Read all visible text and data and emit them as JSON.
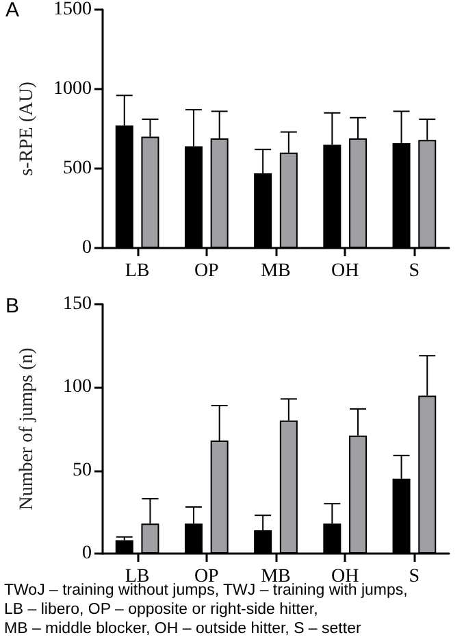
{
  "chart_data": [
    {
      "type": "bar",
      "annotations": [
        "A"
      ],
      "ylabel": "s-RPE (AU)",
      "categories": [
        "LB",
        "OP",
        "MB",
        "OH",
        "S"
      ],
      "ylim": [
        0,
        1500
      ],
      "yticks": [
        0,
        500,
        1000,
        1500
      ],
      "grid": false,
      "series": [
        {
          "color": "#000000",
          "values": [
            770,
            640,
            470,
            650,
            660
          ],
          "errors": [
            [
              770,
              960
            ],
            [
              640,
              870
            ],
            [
              470,
              620
            ],
            [
              650,
              850
            ],
            [
              660,
              860
            ]
          ]
        },
        {
          "color": "#a0a0a4",
          "values": [
            700,
            690,
            600,
            690,
            680
          ],
          "errors": [
            [
              700,
              810
            ],
            [
              690,
              860
            ],
            [
              600,
              730
            ],
            [
              690,
              820
            ],
            [
              680,
              810
            ]
          ]
        }
      ]
    },
    {
      "type": "bar",
      "annotations": [
        "B",
        "TWoJ – training without jumps, TWJ – training with jumps,",
        "LB – libero, OP – opposite or right-side hitter,",
        "MB – middle blocker, OH – outside hitter, S – setter"
      ],
      "ylabel": "Number of jumps (n)",
      "categories": [
        "LB",
        "OP",
        "MB",
        "OH",
        "S"
      ],
      "ylim": [
        0,
        150
      ],
      "yticks": [
        0,
        50,
        100,
        150
      ],
      "grid": false,
      "series": [
        {
          "color": "#000000",
          "values": [
            8,
            18,
            14,
            18,
            45
          ],
          "errors": [
            [
              8,
              10
            ],
            [
              18,
              28
            ],
            [
              14,
              23
            ],
            [
              18,
              30
            ],
            [
              45,
              59
            ]
          ]
        },
        {
          "color": "#a0a0a4",
          "values": [
            18,
            68,
            80,
            71,
            95
          ],
          "errors": [
            [
              18,
              33
            ],
            [
              68,
              89
            ],
            [
              80,
              93
            ],
            [
              71,
              87
            ],
            [
              95,
              119
            ]
          ]
        }
      ]
    }
  ]
}
